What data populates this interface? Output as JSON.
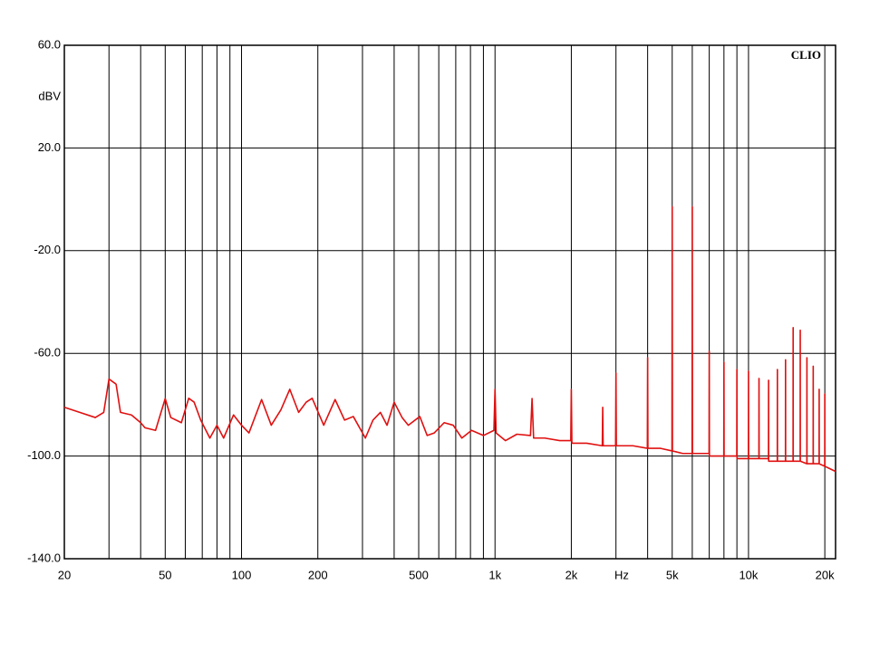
{
  "chart_data": {
    "type": "line",
    "watermark": "CLIO",
    "y_axis_label": "dBV",
    "x_axis_label": "Hz",
    "log_x": true,
    "grid": true,
    "color": "#e01010",
    "xlim": [
      20,
      22050
    ],
    "ylim": [
      -140,
      60
    ],
    "xticks": [
      20,
      50,
      100,
      200,
      500,
      {
        "value": 1000,
        "label": "1k"
      },
      {
        "value": 2000,
        "label": "2k"
      },
      {
        "value": 5000,
        "label": "5k"
      },
      {
        "value": 10000,
        "label": "10k"
      },
      {
        "value": 20000,
        "label": "20k"
      }
    ],
    "xgrid": [
      30,
      40,
      60,
      70,
      80,
      90,
      300,
      400,
      600,
      700,
      800,
      900,
      3000,
      4000,
      6000,
      7000,
      8000,
      9000
    ],
    "yticks": [
      {
        "value": 60,
        "label": "60.0"
      },
      {
        "value": 20,
        "label": "20.0"
      },
      {
        "value": -20,
        "label": "-20.0"
      },
      {
        "value": -60,
        "label": "-60.0"
      },
      {
        "value": -100,
        "label": "-100.0"
      },
      {
        "value": -140,
        "label": "-140.0"
      }
    ],
    "x": [
      20,
      23,
      26.5,
      28.6,
      30,
      32,
      33.3,
      36.8,
      40,
      41.6,
      45.8,
      50,
      52.6,
      57.9,
      61.9,
      65,
      69,
      75,
      80,
      85,
      93,
      100,
      107,
      120,
      131,
      143,
      155,
      168,
      180,
      190,
      211,
      234,
      255,
      276,
      308,
      330,
      353,
      375,
      400,
      430,
      455,
      505,
      540,
      576,
      630,
      684,
      740,
      808,
      900,
      990,
      1000,
      1010,
      1100,
      1220,
      1380,
      1400,
      1420,
      1570,
      1800,
      1990,
      2000,
      2010,
      2300,
      2650,
      2660,
      2670,
      2990,
      3000,
      3010,
      3500,
      3990,
      4000,
      4010,
      4500,
      4990,
      5000,
      5010,
      5500,
      5990,
      6000,
      6010,
      6500,
      6990,
      7000,
      7010,
      7990,
      8000,
      8010,
      8990,
      9000,
      9010,
      9990,
      10000,
      10010,
      10990,
      11000,
      11010,
      11990,
      12000,
      12010,
      12990,
      13000,
      13010,
      13990,
      14000,
      14010,
      14990,
      15000,
      15010,
      15990,
      16000,
      16010,
      16990,
      17000,
      17010,
      17990,
      18000,
      18010,
      18990,
      19000,
      19010,
      19990,
      20000,
      20010,
      21000,
      22050
    ],
    "values": [
      -81,
      -83,
      -85,
      -83,
      -70,
      -72,
      -83,
      -84,
      -87,
      -89,
      -90,
      -77.6,
      -85,
      -87,
      -77.5,
      -79,
      -86,
      -93,
      -88,
      -93,
      -84,
      -88,
      -91,
      -78,
      -88,
      -82,
      -74,
      -83,
      -79,
      -77.5,
      -88,
      -78,
      -86,
      -84.6,
      -93,
      -86,
      -83,
      -88,
      -79,
      -85,
      -88,
      -84.6,
      -92,
      -91,
      -87,
      -88,
      -93,
      -90,
      -92,
      -90,
      -74,
      -91,
      -94,
      -91.5,
      -92,
      -77.6,
      -93,
      -93,
      -94,
      -94,
      -74,
      -95,
      -95,
      -96,
      -81,
      -96,
      -96,
      -67.7,
      -96,
      -96,
      -97,
      -61.7,
      -97,
      -97,
      -98,
      -2.9,
      -98,
      -99,
      -99,
      -2.9,
      -99,
      -99,
      -99,
      -59.2,
      -100,
      -100,
      -63.5,
      -100,
      -100,
      -66.3,
      -101,
      -101,
      -67,
      -101,
      -101,
      -69.8,
      -101,
      -101,
      -70.5,
      -102,
      -102,
      -66.3,
      -102,
      -102,
      -62.5,
      -102,
      -102,
      -50,
      -102,
      -102,
      -51,
      -102,
      -103,
      -61.7,
      -103,
      -103,
      -65,
      -103,
      -103,
      -74,
      -103,
      -104,
      -75.8,
      -104,
      -105,
      -106
    ]
  }
}
